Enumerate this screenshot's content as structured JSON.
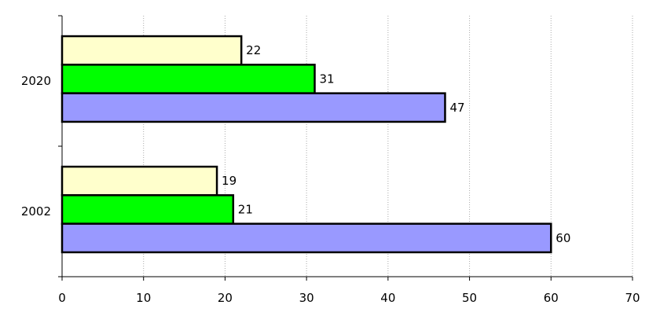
{
  "chart_data": {
    "type": "bar",
    "orientation": "horizontal",
    "categories": [
      "2020",
      "2002"
    ],
    "series": [
      {
        "values": [
          22,
          19
        ],
        "color": "#ffffcc"
      },
      {
        "values": [
          31,
          21
        ],
        "color": "#00ff00"
      },
      {
        "values": [
          47,
          60
        ],
        "color": "#9999ff"
      }
    ],
    "xlim": [
      0,
      70
    ],
    "x_ticks": [
      "0",
      "10",
      "20",
      "30",
      "40",
      "50",
      "60",
      "70"
    ],
    "grid": "vertical-dashed",
    "data_labels": true,
    "legend": "none"
  }
}
